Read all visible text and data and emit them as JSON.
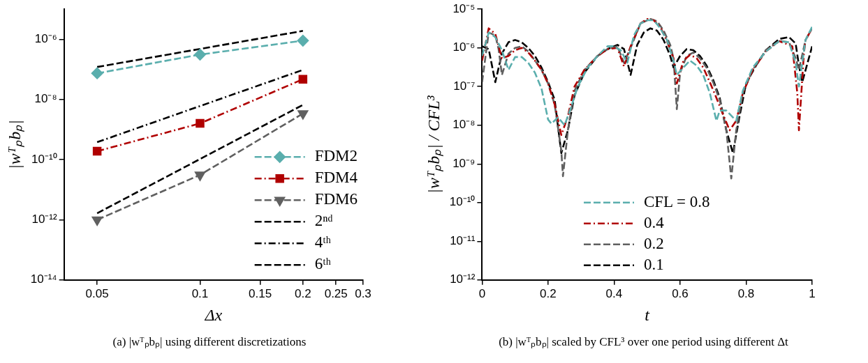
{
  "chart_data": [
    {
      "type": "line",
      "xlabel": "Δx",
      "ylabel": "|wᵀₚbₚ|",
      "log": "xy",
      "xlim": [
        0.04,
        0.3
      ],
      "ylim": [
        1e-14,
        1e-05
      ],
      "xticks": [
        0.05,
        0.1,
        0.15,
        0.2,
        0.25,
        0.3
      ],
      "yticks": [
        {
          "value": 1e-14,
          "label": "10⁻¹⁴"
        },
        {
          "value": 1e-12,
          "label": "10⁻¹²"
        },
        {
          "value": 1e-10,
          "label": "10⁻¹⁰"
        },
        {
          "value": 1e-08,
          "label": "10⁻⁸"
        },
        {
          "value": 1e-06,
          "label": "10⁻⁶"
        }
      ],
      "legend": "bottom right",
      "grid": false,
      "annotations": [
        "(a) |wᵀₚbₚ| using different discretizations"
      ],
      "series": [
        {
          "name": "FDM2",
          "color": "#5aaead",
          "x": [
            0.05,
            0.1,
            0.2
          ],
          "values": [
            7.4e-08,
            3.1e-07,
            9e-07
          ],
          "marker": "diamond",
          "line_style": "dashed"
        },
        {
          "name": "FDM4",
          "color": "#b00000",
          "x": [
            0.05,
            0.1,
            0.2
          ],
          "values": [
            1.9e-10,
            1.6e-09,
            4.7e-08
          ],
          "marker": "square",
          "line_style": "dashdot"
        },
        {
          "name": "FDM6",
          "color": "#606060",
          "x": [
            0.05,
            0.1,
            0.2
          ],
          "values": [
            1e-12,
            3.1e-11,
            3.4e-09
          ],
          "marker": "triangle",
          "line_style": "dashed"
        },
        {
          "name": "2ⁿᵈ",
          "color": "#000000",
          "x": [
            0.05,
            0.2
          ],
          "values": [
            1.2e-07,
            1.9e-06
          ],
          "marker": "none",
          "line_style": "dashed"
        },
        {
          "name": "4ᵗʰ",
          "color": "#000000",
          "x": [
            0.05,
            0.2
          ],
          "values": [
            3.8e-10,
            9.6e-08
          ],
          "marker": "none",
          "line_style": "dashdot"
        },
        {
          "name": "6ᵗʰ",
          "color": "#000000",
          "x": [
            0.05,
            0.2
          ],
          "values": [
            1.65e-12,
            6.6e-09
          ],
          "marker": "none",
          "line_style": "dashed"
        }
      ]
    },
    {
      "type": "line",
      "xlabel": "t",
      "ylabel": "|wᵀₚbₚ| / CFL³",
      "log": "y",
      "xlim": [
        0,
        1
      ],
      "ylim": [
        1e-12,
        1e-05
      ],
      "xticks": [
        0,
        0.2,
        0.4,
        0.6,
        0.8,
        1
      ],
      "yticks": [
        {
          "value": 1e-12,
          "label": "10⁻¹²"
        },
        {
          "value": 1e-11,
          "label": "10⁻¹¹"
        },
        {
          "value": 1e-10,
          "label": "10⁻¹⁰"
        },
        {
          "value": 1e-09,
          "label": "10⁻⁹"
        },
        {
          "value": 1e-08,
          "label": "10⁻⁸"
        },
        {
          "value": 1e-07,
          "label": "10⁻⁷"
        },
        {
          "value": 1e-06,
          "label": "10⁻⁶"
        },
        {
          "value": 1e-05,
          "label": "10⁻⁵"
        }
      ],
      "legend": "bottom",
      "grid": false,
      "marker": "none",
      "annotations": [
        "(b) |wᵀₚbₚ| scaled by CFL³ over one period using different Δt"
      ],
      "series": [
        {
          "name": "CFL = 0.8",
          "color": "#5aaead",
          "line_style": "dashed",
          "x": [
            0,
            0.02,
            0.04,
            0.06,
            0.08,
            0.1,
            0.12,
            0.14,
            0.16,
            0.18,
            0.2,
            0.21,
            0.23,
            0.25,
            0.27,
            0.29,
            0.32,
            0.35,
            0.38,
            0.4,
            0.42,
            0.44,
            0.46,
            0.48,
            0.5,
            0.52,
            0.54,
            0.56,
            0.58,
            0.59,
            0.61,
            0.63,
            0.65,
            0.67,
            0.69,
            0.71,
            0.72,
            0.74,
            0.77,
            0.79,
            0.82,
            0.86,
            0.9,
            0.93,
            0.95,
            0.96,
            0.98,
            1.0
          ],
          "values": [
            6.2e-07,
            2.5e-06,
            1.9e-06,
            8.7e-07,
            2.7e-07,
            5.8e-07,
            5.8e-07,
            4.1e-07,
            2.3e-07,
            8.9e-08,
            1.4e-08,
            1.1e-08,
            1.6e-08,
            1e-08,
            3e-08,
            1e-07,
            3.1e-07,
            6.2e-07,
            1.1e-06,
            1.1e-06,
            8.7e-07,
            4.1e-07,
            2.1e-06,
            4.3e-06,
            5.2e-06,
            5.2e-06,
            3.2e-06,
            1.6e-06,
            4.7e-07,
            2e-07,
            3.1e-07,
            4.7e-07,
            3.5e-07,
            2e-07,
            6.8e-08,
            1.3e-08,
            2.4e-08,
            2.4e-08,
            1.3e-08,
            7.8e-08,
            3.1e-07,
            8.1e-07,
            1.5e-06,
            1.4e-06,
            4.1e-07,
            1e-07,
            1.6e-06,
            3.5e-06
          ]
        },
        {
          "name": "0.4",
          "color": "#b00000",
          "line_style": "dashdot",
          "x": [
            0,
            0.02,
            0.04,
            0.06,
            0.08,
            0.1,
            0.12,
            0.14,
            0.16,
            0.18,
            0.2,
            0.22,
            0.24,
            0.26,
            0.28,
            0.31,
            0.35,
            0.38,
            0.41,
            0.43,
            0.45,
            0.48,
            0.5,
            0.52,
            0.54,
            0.56,
            0.58,
            0.59,
            0.61,
            0.63,
            0.65,
            0.67,
            0.69,
            0.71,
            0.73,
            0.75,
            0.77,
            0.79,
            0.82,
            0.86,
            0.9,
            0.94,
            0.955,
            0.96,
            0.975,
            0.98,
            1.0
          ],
          "values": [
            4.7e-07,
            3.2e-06,
            2.3e-06,
            5.4e-07,
            6.2e-07,
            8.7e-07,
            1e-06,
            7.6e-07,
            4.7e-07,
            2.7e-07,
            1.2e-07,
            3.4e-08,
            5.6e-09,
            1.7e-08,
            1e-07,
            2.7e-07,
            6.2e-07,
            9.3e-07,
            1e-06,
            3.3e-07,
            1.1e-06,
            4.3e-06,
            5.6e-06,
            5.2e-06,
            3.5e-06,
            1.5e-06,
            5.4e-07,
            1.2e-07,
            4.7e-07,
            6.6e-07,
            5.4e-07,
            3.1e-07,
            1.3e-07,
            5.1e-08,
            1.9e-08,
            7.4e-09,
            1.3e-08,
            6.8e-08,
            2.7e-07,
            8.1e-07,
            1.5e-06,
            1.1e-06,
            6.8e-08,
            7.4e-09,
            7.1e-07,
            1.6e-06,
            3.2e-06
          ]
        },
        {
          "name": "0.2",
          "color": "#606060",
          "line_style": "dashed",
          "x": [
            0,
            0.02,
            0.04,
            0.05,
            0.06,
            0.08,
            0.1,
            0.12,
            0.14,
            0.16,
            0.18,
            0.2,
            0.22,
            0.24,
            0.245,
            0.26,
            0.28,
            0.31,
            0.35,
            0.38,
            0.41,
            0.43,
            0.45,
            0.48,
            0.51,
            0.53,
            0.55,
            0.57,
            0.58,
            0.59,
            0.6,
            0.62,
            0.64,
            0.66,
            0.68,
            0.7,
            0.72,
            0.74,
            0.755,
            0.77,
            0.79,
            0.82,
            0.86,
            0.9,
            0.93,
            0.95,
            0.96,
            0.98,
            1.0
          ],
          "values": [
            1.3e-07,
            2.5e-06,
            2.1e-06,
            9.3e-07,
            2e-07,
            7.1e-07,
            1e-06,
            1.1e-06,
            8.1e-07,
            4.7e-07,
            2.7e-07,
            1.2e-07,
            3.4e-08,
            2.2e-09,
            4.8e-10,
            7.4e-09,
            7.8e-08,
            2.7e-07,
            6.2e-07,
            9.3e-07,
            1.1e-06,
            4.1e-07,
            1e-06,
            4.3e-06,
            5.6e-06,
            4.9e-06,
            2.8e-06,
            1.2e-06,
            5.4e-07,
            2.6e-08,
            2.3e-07,
            6.2e-07,
            7.6e-07,
            5.4e-07,
            3.1e-07,
            1.3e-07,
            4.5e-08,
            7.4e-09,
            4.2e-10,
            7.4e-09,
            6.8e-08,
            2.7e-07,
            8.7e-07,
            1.5e-06,
            1.4e-06,
            5.4e-07,
            2.7e-07,
            1.6e-06,
            3.2e-06
          ]
        },
        {
          "name": "0.1",
          "color": "#000000",
          "line_style": "dashed",
          "x": [
            0,
            0.02,
            0.04,
            0.06,
            0.08,
            0.1,
            0.12,
            0.14,
            0.16,
            0.18,
            0.2,
            0.22,
            0.24,
            0.26,
            0.28,
            0.31,
            0.35,
            0.38,
            0.41,
            0.43,
            0.45,
            0.47,
            0.49,
            0.51,
            0.53,
            0.55,
            0.57,
            0.58,
            0.6,
            0.62,
            0.64,
            0.66,
            0.68,
            0.7,
            0.72,
            0.74,
            0.76,
            0.78,
            0.8,
            0.83,
            0.86,
            0.9,
            0.93,
            0.95,
            0.96,
            0.97,
            1.0
          ],
          "values": [
            1.1e-06,
            9.3e-07,
            1.3e-07,
            7.1e-07,
            1.4e-06,
            1.6e-06,
            1.4e-06,
            1e-06,
            6.2e-07,
            3.1e-07,
            1.3e-07,
            4.5e-08,
            1.9e-09,
            7.4e-09,
            5.9e-08,
            2.3e-07,
            6.2e-07,
            9.3e-07,
            1.2e-06,
            9.3e-07,
            2e-07,
            1.2e-06,
            2.5e-06,
            3.2e-06,
            2.8e-06,
            1.6e-06,
            6.2e-07,
            3.1e-07,
            6.2e-07,
            9.3e-07,
            8.7e-07,
            6.2e-07,
            3.5e-07,
            1.5e-07,
            5.1e-08,
            7.4e-09,
            1.9e-09,
            1.7e-08,
            1.2e-07,
            3.5e-07,
            8.7e-07,
            1.7e-06,
            1.9e-06,
            1.3e-06,
            3.5e-07,
            1.3e-07,
            1.1e-06
          ]
        }
      ]
    }
  ]
}
